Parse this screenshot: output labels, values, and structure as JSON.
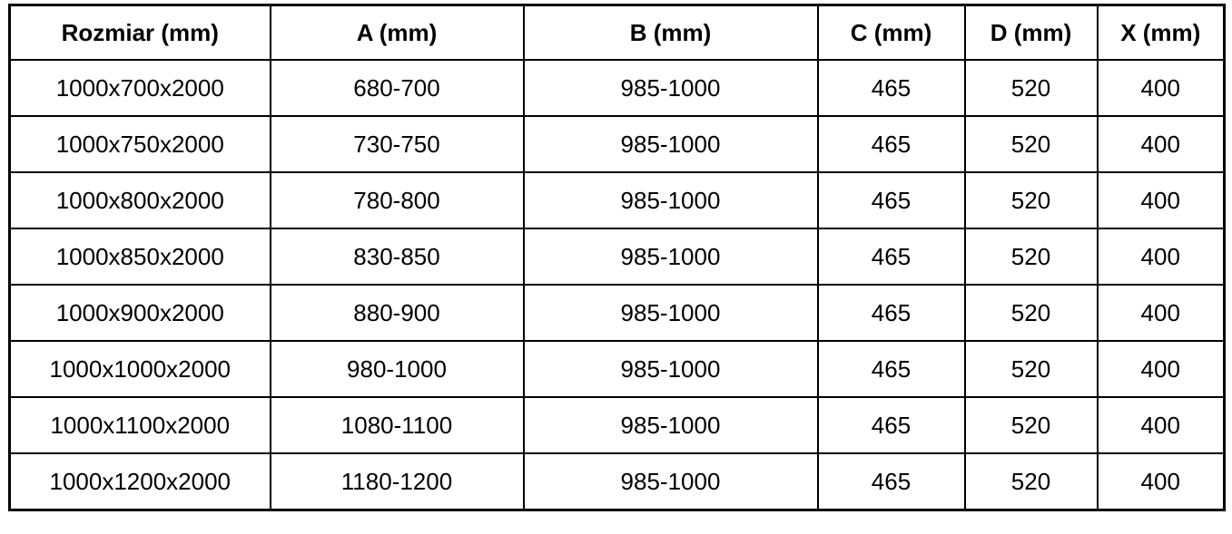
{
  "table": {
    "name": "shower-enclosure-dimensions-table",
    "columns": [
      "Rozmiar (mm)",
      "A (mm)",
      "B (mm)",
      "C (mm)",
      "D (mm)",
      "X (mm)"
    ],
    "rows": [
      [
        "1000x700x2000",
        "680-700",
        "985-1000",
        "465",
        "520",
        "400"
      ],
      [
        "1000x750x2000",
        "730-750",
        "985-1000",
        "465",
        "520",
        "400"
      ],
      [
        "1000x800x2000",
        "780-800",
        "985-1000",
        "465",
        "520",
        "400"
      ],
      [
        "1000x850x2000",
        "830-850",
        "985-1000",
        "465",
        "520",
        "400"
      ],
      [
        "1000x900x2000",
        "880-900",
        "985-1000",
        "465",
        "520",
        "400"
      ],
      [
        "1000x1000x2000",
        "980-1000",
        "985-1000",
        "465",
        "520",
        "400"
      ],
      [
        "1000x1100x2000",
        "1080-1100",
        "985-1000",
        "465",
        "520",
        "400"
      ],
      [
        "1000x1200x2000",
        "1180-1200",
        "985-1000",
        "465",
        "520",
        "400"
      ]
    ],
    "colors": {
      "border": "#000000",
      "text": "#000000",
      "background": "#ffffff"
    }
  }
}
